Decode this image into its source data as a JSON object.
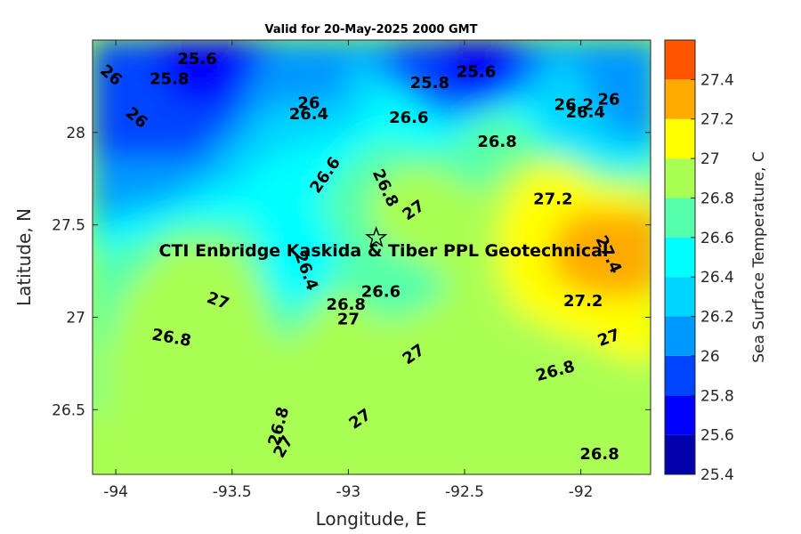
{
  "chart_data": {
    "type": "heatmap",
    "subtype": "filled-contour",
    "title": "Valid for 20-May-2025 2000 GMT",
    "xlabel": "Longitude, E",
    "ylabel": "Latitude, N",
    "xlim": [
      -94.1,
      -91.7
    ],
    "ylim": [
      26.15,
      28.5
    ],
    "xticks": [
      -94,
      -93.5,
      -93,
      -92.5,
      -92
    ],
    "yticks": [
      26.5,
      27,
      27.5,
      28
    ],
    "colorbar": {
      "label": "Sea Surface Temperature, C",
      "range": [
        25.4,
        27.6
      ],
      "ticks": [
        25.4,
        25.6,
        25.8,
        26,
        26.2,
        26.4,
        26.6,
        26.8,
        27,
        27.2,
        27.4
      ],
      "levels": [
        25.4,
        25.6,
        25.8,
        26.0,
        26.2,
        26.4,
        26.6,
        26.8,
        27.0,
        27.2,
        27.4,
        27.6
      ],
      "colors": [
        "#0000aa",
        "#0000ff",
        "#0044ff",
        "#0099ff",
        "#00d5ff",
        "#00ffff",
        "#55ffaa",
        "#aaff55",
        "#ffff00",
        "#ffaa00",
        "#ff5500",
        "#ff0000"
      ]
    },
    "annotation": "CTI Enbridge  Kaskida & Tiber PPL Geotechnical",
    "marker": {
      "symbol": "star",
      "lon": -92.88,
      "lat": 27.43
    },
    "contour_labels": [
      {
        "text": "25.6",
        "lon": -93.65,
        "lat": 28.4,
        "angle": 0
      },
      {
        "text": "25.6",
        "lon": -92.45,
        "lat": 28.33,
        "angle": 0
      },
      {
        "text": "25.8",
        "lon": -93.77,
        "lat": 28.29,
        "angle": 0
      },
      {
        "text": "25.8",
        "lon": -92.65,
        "lat": 28.27,
        "angle": 0
      },
      {
        "text": "26",
        "lon": -94.02,
        "lat": 28.31,
        "angle": 40
      },
      {
        "text": "26",
        "lon": -93.91,
        "lat": 28.08,
        "angle": 40
      },
      {
        "text": "26",
        "lon": -93.17,
        "lat": 28.16,
        "angle": 0
      },
      {
        "text": "26",
        "lon": -91.88,
        "lat": 28.18,
        "angle": 0
      },
      {
        "text": "26.4",
        "lon": -93.17,
        "lat": 28.1,
        "angle": 0
      },
      {
        "text": "26.2",
        "lon": -92.03,
        "lat": 28.15,
        "angle": 0
      },
      {
        "text": "26.4",
        "lon": -91.98,
        "lat": 28.11,
        "angle": 0
      },
      {
        "text": "26.6",
        "lon": -92.74,
        "lat": 28.08,
        "angle": 0
      },
      {
        "text": "26.8",
        "lon": -92.36,
        "lat": 27.95,
        "angle": 0
      },
      {
        "text": "26.6",
        "lon": -93.1,
        "lat": 27.77,
        "angle": -55
      },
      {
        "text": "26.8",
        "lon": -92.84,
        "lat": 27.7,
        "angle": 65
      },
      {
        "text": "27",
        "lon": -92.72,
        "lat": 27.58,
        "angle": -35
      },
      {
        "text": "27.2",
        "lon": -92.12,
        "lat": 27.64,
        "angle": 0
      },
      {
        "text": "27.4",
        "lon": -91.88,
        "lat": 27.34,
        "angle": 65
      },
      {
        "text": "26.4",
        "lon": -93.18,
        "lat": 27.25,
        "angle": 70
      },
      {
        "text": "26.6",
        "lon": -92.86,
        "lat": 27.14,
        "angle": 0
      },
      {
        "text": "26.8",
        "lon": -93.01,
        "lat": 27.07,
        "angle": 0
      },
      {
        "text": "27",
        "lon": -93.0,
        "lat": 26.99,
        "angle": 0
      },
      {
        "text": "27.2",
        "lon": -91.99,
        "lat": 27.09,
        "angle": 0
      },
      {
        "text": "27",
        "lon": -93.56,
        "lat": 27.09,
        "angle": 20
      },
      {
        "text": "26.8",
        "lon": -93.76,
        "lat": 26.89,
        "angle": 10
      },
      {
        "text": "27",
        "lon": -91.88,
        "lat": 26.89,
        "angle": -20
      },
      {
        "text": "26.8",
        "lon": -92.11,
        "lat": 26.71,
        "angle": -15
      },
      {
        "text": "27",
        "lon": -92.72,
        "lat": 26.8,
        "angle": -35
      },
      {
        "text": "27",
        "lon": -92.95,
        "lat": 26.45,
        "angle": -35
      },
      {
        "text": "26.8",
        "lon": -93.3,
        "lat": 26.41,
        "angle": -75
      },
      {
        "text": "27",
        "lon": -93.28,
        "lat": 26.3,
        "angle": -60
      },
      {
        "text": "26.8",
        "lon": -91.92,
        "lat": 26.26,
        "angle": 0
      }
    ]
  }
}
